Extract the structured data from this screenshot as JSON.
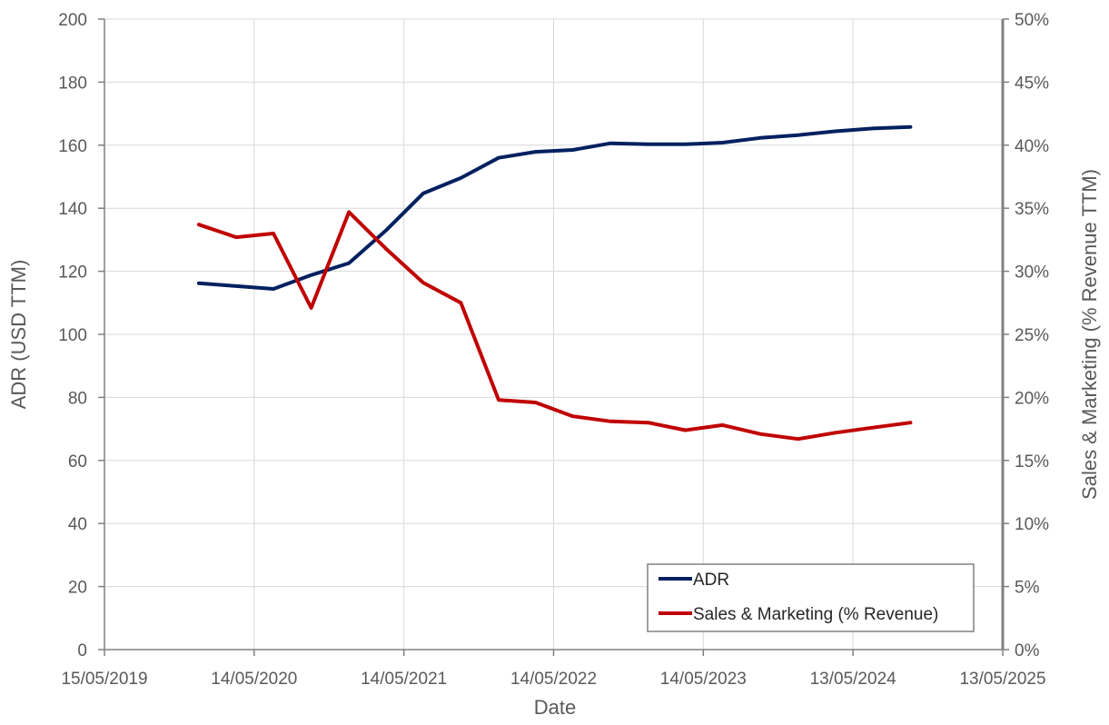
{
  "chart_data": {
    "type": "line",
    "xlabel": "Date",
    "ylabel_left": "ADR (USD TTM)",
    "ylabel_right": "Sales & Marketing (% Revenue TTM)",
    "x_ticks": [
      "15/05/2019",
      "14/05/2020",
      "14/05/2021",
      "14/05/2022",
      "14/05/2023",
      "13/05/2024",
      "13/05/2025"
    ],
    "y_left_ticks": [
      "0",
      "20",
      "40",
      "60",
      "80",
      "100",
      "120",
      "140",
      "160",
      "180",
      "200"
    ],
    "y_right_ticks": [
      "0%",
      "5%",
      "10%",
      "15%",
      "20%",
      "25%",
      "30%",
      "35%",
      "40%",
      "45%",
      "50%"
    ],
    "xlim": [
      "2019-05-15",
      "2025-05-13"
    ],
    "ylim_left": [
      0,
      200
    ],
    "ylim_right": [
      0,
      0.5
    ],
    "grid": true,
    "legend_position": "bottom-right",
    "series": [
      {
        "name": "ADR",
        "axis": "left",
        "color": "#002060",
        "points": [
          [
            "2019-12-31",
            116.2
          ],
          [
            "2020-03-31",
            115.3
          ],
          [
            "2020-06-30",
            114.4
          ],
          [
            "2020-09-30",
            118.8
          ],
          [
            "2020-12-31",
            122.6
          ],
          [
            "2021-03-31",
            132.9
          ],
          [
            "2021-06-30",
            144.7
          ],
          [
            "2021-09-30",
            149.6
          ],
          [
            "2021-12-31",
            156.0
          ],
          [
            "2022-03-31",
            157.9
          ],
          [
            "2022-06-30",
            158.5
          ],
          [
            "2022-09-30",
            160.6
          ],
          [
            "2022-12-31",
            160.3
          ],
          [
            "2023-03-31",
            160.3
          ],
          [
            "2023-06-30",
            160.8
          ],
          [
            "2023-09-30",
            162.3
          ],
          [
            "2023-12-31",
            163.2
          ],
          [
            "2024-03-31",
            164.4
          ],
          [
            "2024-06-30",
            165.3
          ],
          [
            "2024-09-30",
            165.8
          ]
        ]
      },
      {
        "name": "Sales & Marketing (% Revenue)",
        "axis": "right",
        "color": "#C00000",
        "points": [
          [
            "2019-12-31",
            0.337
          ],
          [
            "2020-03-31",
            0.327
          ],
          [
            "2020-06-30",
            0.33
          ],
          [
            "2020-09-30",
            0.271
          ],
          [
            "2020-12-31",
            0.347
          ],
          [
            "2021-03-31",
            0.318
          ],
          [
            "2021-06-30",
            0.291
          ],
          [
            "2021-09-30",
            0.275
          ],
          [
            "2021-12-31",
            0.198
          ],
          [
            "2022-03-31",
            0.196
          ],
          [
            "2022-06-30",
            0.185
          ],
          [
            "2022-09-30",
            0.181
          ],
          [
            "2022-12-31",
            0.18
          ],
          [
            "2023-03-31",
            0.174
          ],
          [
            "2023-06-30",
            0.178
          ],
          [
            "2023-09-30",
            0.171
          ],
          [
            "2023-12-31",
            0.167
          ],
          [
            "2024-03-31",
            0.172
          ],
          [
            "2024-06-30",
            0.176
          ],
          [
            "2024-09-30",
            0.18
          ]
        ]
      }
    ]
  }
}
